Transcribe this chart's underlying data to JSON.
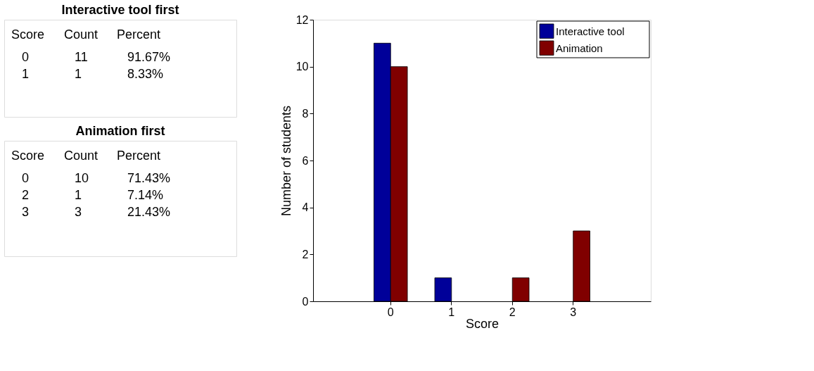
{
  "chart_data": [
    {
      "type": "other",
      "title": "Interactive tool first",
      "annotations": [
        "Score Count Percent",
        "0 11 91.67%",
        "1 1 8.33%"
      ]
    },
    {
      "type": "other",
      "title": "Animation first",
      "annotations": [
        "Score Count Percent",
        "0 10 71.43%",
        "2 1 7.14%",
        "3 3 21.43%"
      ]
    },
    {
      "type": "bar",
      "xlabel": "Score",
      "ylabel": "Number of students",
      "categories": [
        "0",
        "1",
        "2",
        "3"
      ],
      "series": [
        {
          "name": "Interactive tool",
          "color": "#000099",
          "values": [
            11,
            1,
            null,
            null
          ]
        },
        {
          "name": "Animation",
          "color": "#800000",
          "values": [
            10,
            null,
            1,
            3
          ]
        }
      ],
      "ylim": [
        0,
        12
      ],
      "yticks": [
        0,
        2,
        4,
        6,
        8,
        10,
        12
      ],
      "grid": false,
      "legend": "top right"
    }
  ]
}
